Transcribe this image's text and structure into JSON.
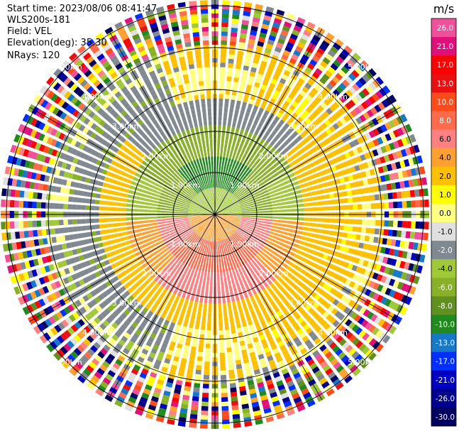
{
  "header": {
    "start_time": "Start time: 2023/08/06 08:41:47",
    "instrument": "WLS200s-181",
    "field": "Field: VEL",
    "elevation": "Elevation(deg): 35.30",
    "nrays": "NRays: 120"
  },
  "chart_data": {
    "type": "heatmap",
    "projection": "polar-ppi",
    "field": "VEL",
    "units": "m/s",
    "n_rays": 120,
    "range_rings": [
      {
        "label": "1.00km"
      },
      {
        "label": "2.00km"
      },
      {
        "label": "3.00km"
      },
      {
        "label": "4.00km"
      },
      {
        "label": "5.00km"
      }
    ],
    "colorbar": {
      "units_label": "m/s",
      "ticks": [
        "26.0",
        "21.0",
        "17.0",
        "13.0",
        "10.0",
        "8.0",
        "6.0",
        "4.0",
        "2.0",
        "1.0",
        "0.0",
        "-1.0",
        "-2.0",
        "-4.0",
        "-6.0",
        "-8.0",
        "-10.0",
        "-13.0",
        "-17.0",
        "-21.0",
        "-26.0",
        "-30.0"
      ],
      "colors": [
        "#f0509a",
        "#e0107a",
        "#ff0000",
        "#e81010",
        "#ff4a1a",
        "#ff6a4a",
        "#ff8080",
        "#ffa030",
        "#ffc000",
        "#ffff00",
        "#ffff80",
        "#e0e0e0",
        "#808890",
        "#a0c838",
        "#88b028",
        "#609020",
        "#208a20",
        "#1878c8",
        "#0030ff",
        "#0000c0",
        "#000090",
        "#000060"
      ]
    },
    "pattern": {
      "inner_negative": [
        {
          "from_az": 285,
          "to_az": 75,
          "value": -6.0
        },
        {
          "from_az": 320,
          "to_az": 40,
          "value": -10.0
        }
      ],
      "inner_positive": [
        {
          "from_az": 100,
          "to_az": 260,
          "value": 6.0
        }
      ],
      "far_field": "noise"
    }
  }
}
